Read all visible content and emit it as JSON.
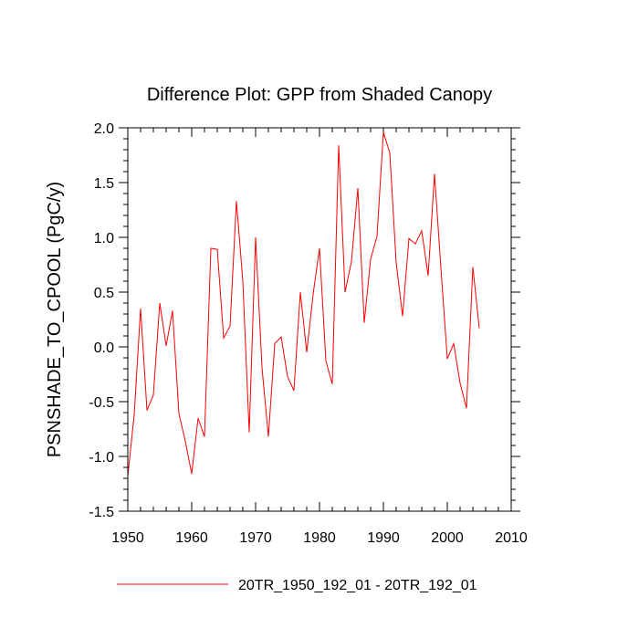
{
  "chart_data": {
    "type": "line",
    "title": "Difference Plot: GPP from Shaded Canopy",
    "xlabel": "",
    "ylabel": "PSNSHADE_TO_CPOOL  (PgC/y)",
    "xlim": [
      1950,
      2010
    ],
    "ylim": [
      -1.5,
      2.0
    ],
    "x_ticks": [
      1950,
      1960,
      1970,
      1980,
      1990,
      2000,
      2010
    ],
    "x_tick_labels": [
      "1950",
      "1960",
      "1970",
      "1980",
      "1990",
      "2000",
      "2010"
    ],
    "y_ticks": [
      -1.5,
      -1.0,
      -0.5,
      0.0,
      0.5,
      1.0,
      1.5,
      2.0
    ],
    "y_tick_labels": [
      "-1.5",
      "-1.0",
      "-0.5",
      "0.0",
      "0.5",
      "1.0",
      "1.5",
      "2.0"
    ],
    "grid": false,
    "legend_position": "bottom",
    "series": [
      {
        "name": "20TR_1950_192_01 - 20TR_192_01",
        "color": "#ff0000",
        "x": [
          1950,
          1951,
          1952,
          1953,
          1954,
          1955,
          1956,
          1957,
          1958,
          1959,
          1960,
          1961,
          1962,
          1963,
          1964,
          1965,
          1966,
          1967,
          1968,
          1969,
          1970,
          1971,
          1972,
          1973,
          1974,
          1975,
          1976,
          1977,
          1978,
          1979,
          1980,
          1981,
          1982,
          1983,
          1984,
          1985,
          1986,
          1987,
          1988,
          1989,
          1990,
          1991,
          1992,
          1993,
          1994,
          1995,
          1996,
          1997,
          1998,
          1999,
          2000,
          2001,
          2002,
          2003,
          2004,
          2005
        ],
        "values": [
          -1.18,
          -0.62,
          0.35,
          -0.58,
          -0.44,
          0.4,
          0.01,
          0.33,
          -0.61,
          -0.86,
          -1.16,
          -0.65,
          -0.82,
          0.9,
          0.89,
          0.08,
          0.19,
          1.33,
          0.6,
          -0.78,
          1.0,
          -0.19,
          -0.82,
          0.03,
          0.09,
          -0.27,
          -0.4,
          0.5,
          -0.05,
          0.48,
          0.9,
          -0.13,
          -0.34,
          1.84,
          0.5,
          0.78,
          1.45,
          0.22,
          0.8,
          1.01,
          1.96,
          1.77,
          0.77,
          0.28,
          0.99,
          0.94,
          1.06,
          0.65,
          1.58,
          0.72,
          -0.11,
          0.03,
          -0.33,
          -0.56,
          0.73,
          0.17
        ]
      }
    ]
  }
}
